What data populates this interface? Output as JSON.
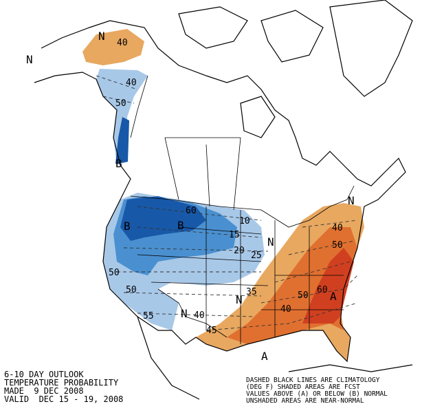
{
  "caption": {
    "lines": [
      "6-10 DAY OUTLOOK",
      "TEMPERATURE PROBABILITY",
      "MADE  9 DEC 2008",
      "VALID  DEC 15 - 19, 2008"
    ]
  },
  "legend_note": {
    "lines": [
      "DASHED BLACK LINES ARE CLIMATOLOGY",
      "(DEG F) SHADED AREAS ARE FCST",
      "VALUES ABOVE (A) OR BELOW (B) NORMAL",
      "UNSHADED AREAS ARE NEAR-NORMAL"
    ]
  },
  "map": {
    "labels": [
      "N",
      "40",
      "N",
      "40",
      "50",
      "B",
      "B",
      "B",
      "60",
      "10",
      "15",
      "20",
      "25",
      "N",
      "50",
      "50",
      "55",
      "N",
      "40",
      "N",
      "35",
      "40",
      "50",
      "60",
      "A",
      "40",
      "50",
      "N",
      "45",
      "A"
    ]
  }
}
